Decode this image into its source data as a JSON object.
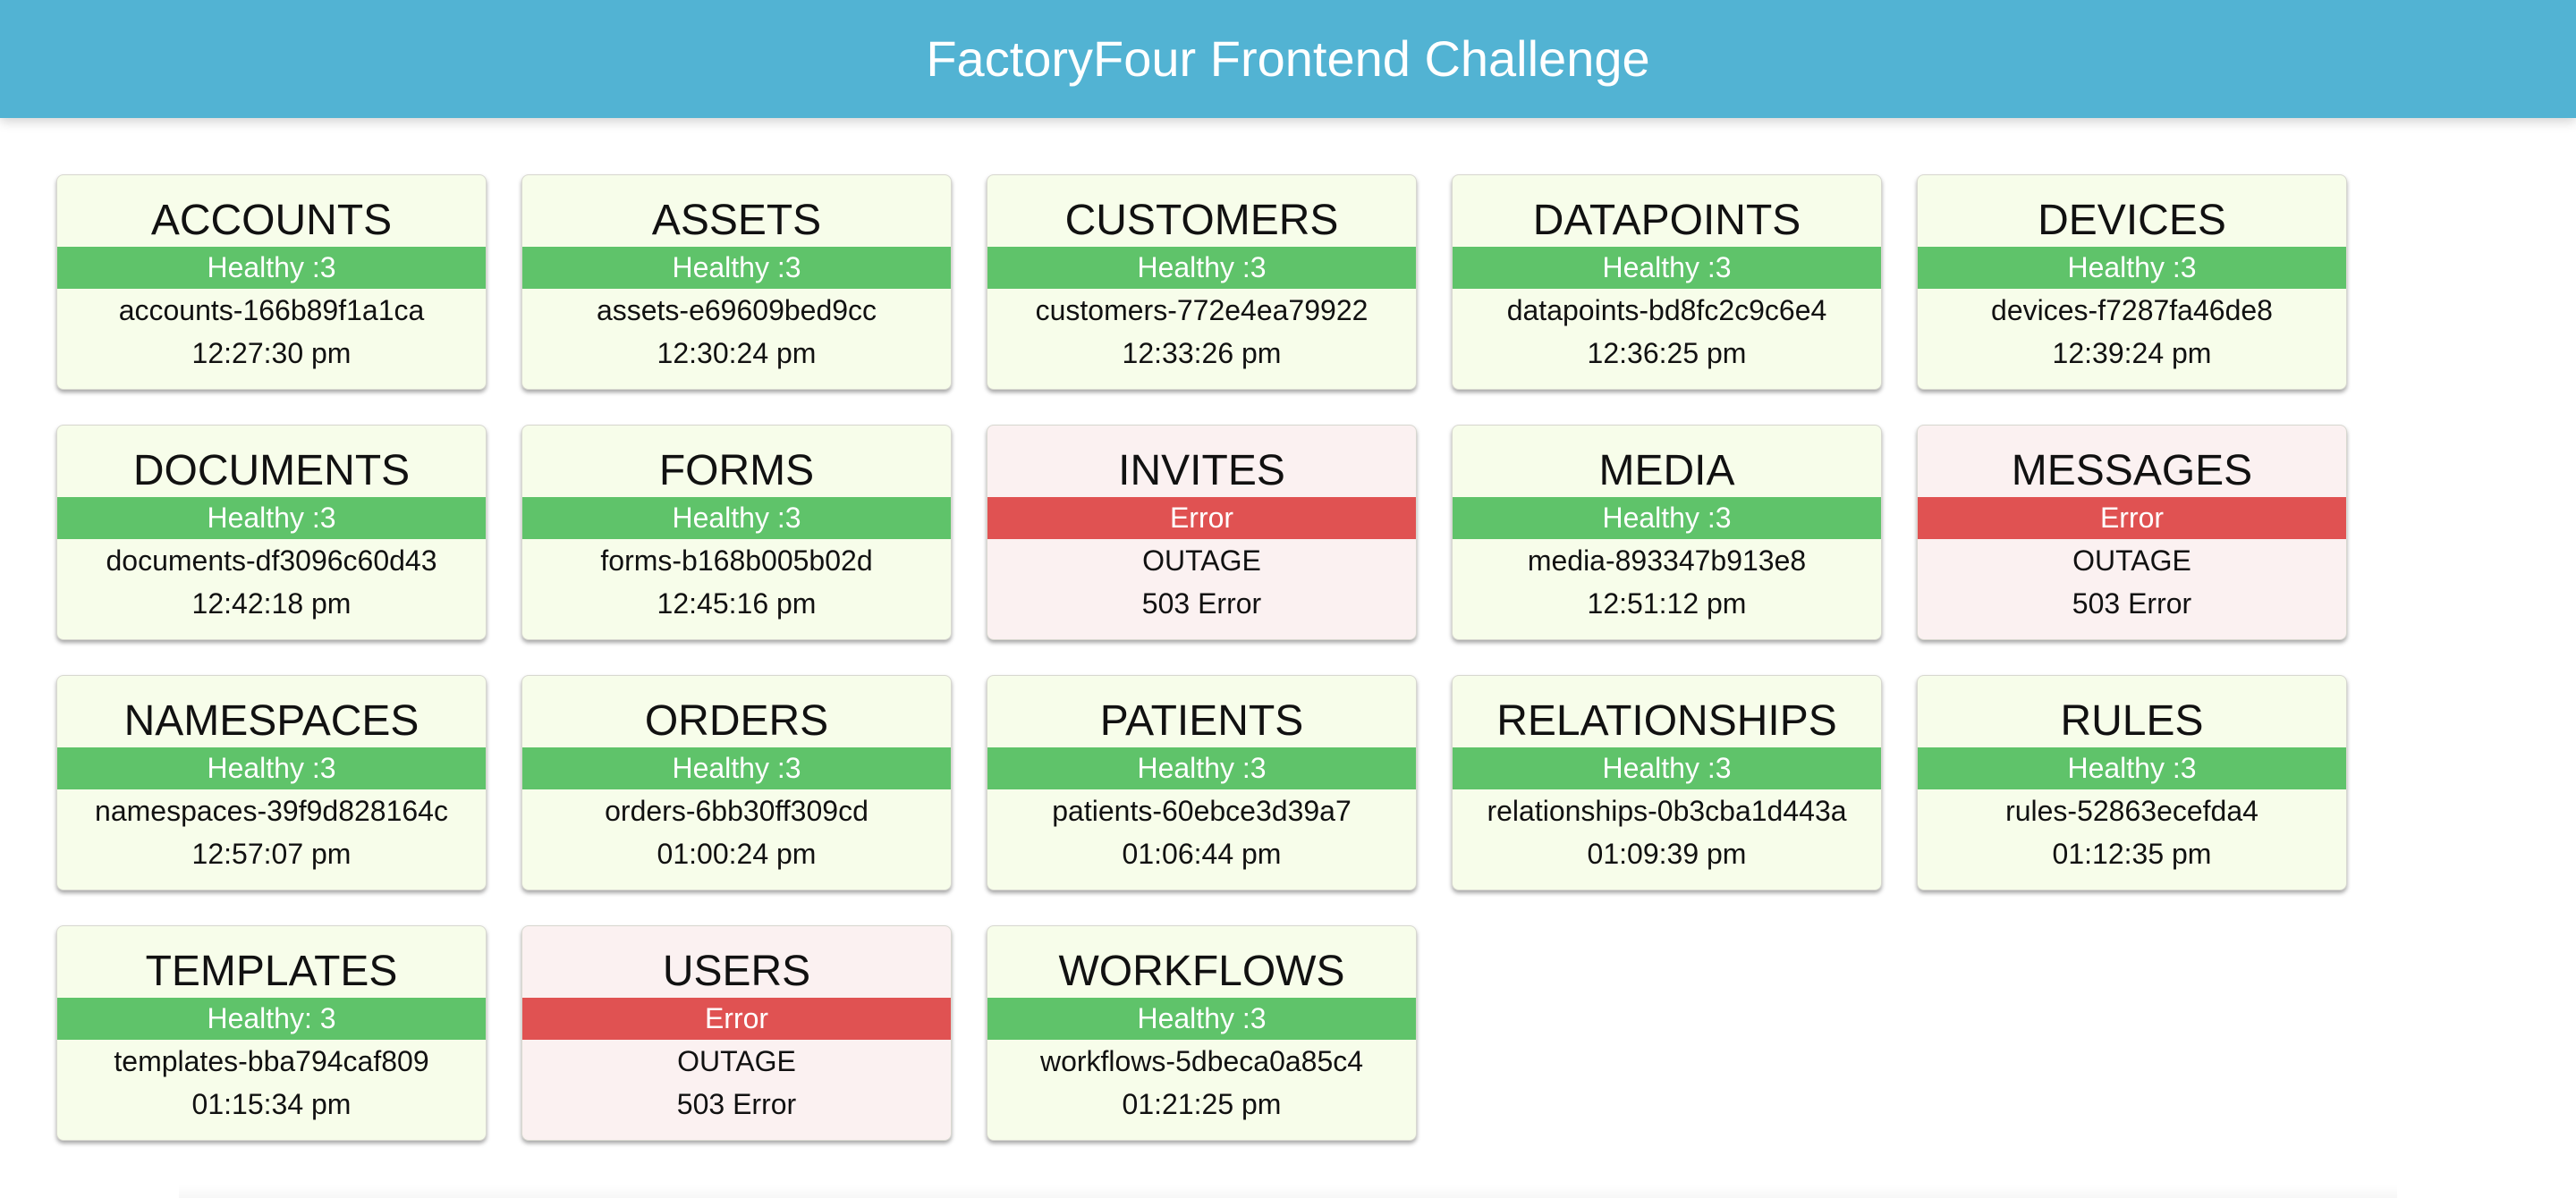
{
  "header": {
    "title": "FactoryFour Frontend Challenge"
  },
  "colors": {
    "header_bg": "#52b3d3",
    "healthy_bg": "#5fc36a",
    "error_bg": "#e05252",
    "healthy_card": "#f7fdea",
    "error_card": "#fbf1f1"
  },
  "services": [
    {
      "name": "ACCOUNTS",
      "state": "ok",
      "status": "Healthy :3",
      "line1": "accounts-166b89f1a1ca",
      "line2": "12:27:30 pm"
    },
    {
      "name": "ASSETS",
      "state": "ok",
      "status": "Healthy :3",
      "line1": "assets-e69609bed9cc",
      "line2": "12:30:24 pm"
    },
    {
      "name": "CUSTOMERS",
      "state": "ok",
      "status": "Healthy :3",
      "line1": "customers-772e4ea79922",
      "line2": "12:33:26 pm"
    },
    {
      "name": "DATAPOINTS",
      "state": "ok",
      "status": "Healthy :3",
      "line1": "datapoints-bd8fc2c9c6e4",
      "line2": "12:36:25 pm"
    },
    {
      "name": "DEVICES",
      "state": "ok",
      "status": "Healthy :3",
      "line1": "devices-f7287fa46de8",
      "line2": "12:39:24 pm"
    },
    {
      "name": "DOCUMENTS",
      "state": "ok",
      "status": "Healthy :3",
      "line1": "documents-df3096c60d43",
      "line2": "12:42:18 pm"
    },
    {
      "name": "FORMS",
      "state": "ok",
      "status": "Healthy :3",
      "line1": "forms-b168b005b02d",
      "line2": "12:45:16 pm"
    },
    {
      "name": "INVITES",
      "state": "err",
      "status": "Error",
      "line1": "OUTAGE",
      "line2": "503 Error"
    },
    {
      "name": "MEDIA",
      "state": "ok",
      "status": "Healthy :3",
      "line1": "media-893347b913e8",
      "line2": "12:51:12 pm"
    },
    {
      "name": "MESSAGES",
      "state": "err",
      "status": "Error",
      "line1": "OUTAGE",
      "line2": "503 Error"
    },
    {
      "name": "NAMESPACES",
      "state": "ok",
      "status": "Healthy :3",
      "line1": "namespaces-39f9d828164c",
      "line2": "12:57:07 pm"
    },
    {
      "name": "ORDERS",
      "state": "ok",
      "status": "Healthy :3",
      "line1": "orders-6bb30ff309cd",
      "line2": "01:00:24 pm"
    },
    {
      "name": "PATIENTS",
      "state": "ok",
      "status": "Healthy :3",
      "line1": "patients-60ebce3d39a7",
      "line2": "01:06:44 pm"
    },
    {
      "name": "RELATIONSHIPS",
      "state": "ok",
      "status": "Healthy :3",
      "line1": "relationships-0b3cba1d443a",
      "line2": "01:09:39 pm"
    },
    {
      "name": "RULES",
      "state": "ok",
      "status": "Healthy :3",
      "line1": "rules-52863ecefda4",
      "line2": "01:12:35 pm"
    },
    {
      "name": "TEMPLATES",
      "state": "ok",
      "status": "Healthy: 3",
      "line1": "templates-bba794caf809",
      "line2": "01:15:34 pm"
    },
    {
      "name": "USERS",
      "state": "err",
      "status": "Error",
      "line1": "OUTAGE",
      "line2": "503 Error"
    },
    {
      "name": "WORKFLOWS",
      "state": "ok",
      "status": "Healthy :3",
      "line1": "workflows-5dbeca0a85c4",
      "line2": "01:21:25 pm"
    }
  ]
}
